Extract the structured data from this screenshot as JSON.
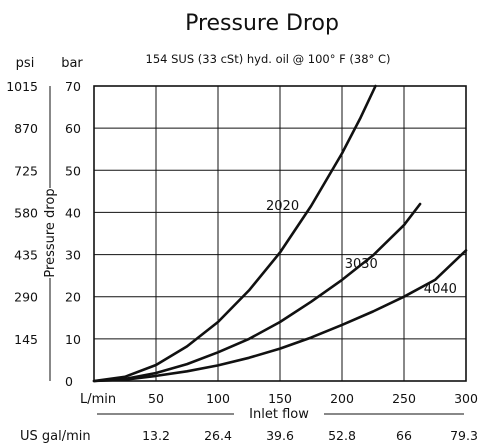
{
  "chart_data": {
    "type": "line",
    "title": "Pressure Drop",
    "subtitle": "154 SUS (33 cSt) hyd. oil @ 100° F (38° C)",
    "y_units": {
      "left": "psi",
      "right": "bar"
    },
    "y_label": "Pressure drop",
    "x_label": "Inlet flow",
    "x_units_primary": "L/min",
    "x_units_secondary": "US gal/min",
    "xlim": [
      0,
      300
    ],
    "ylim": [
      0,
      70
    ],
    "grid": true,
    "x_ticks": [
      50,
      100,
      150,
      200,
      250,
      300
    ],
    "x_tick_labels": [
      "50",
      "100",
      "150",
      "200",
      "250",
      "300"
    ],
    "x_secondary_tick_labels": [
      "13.2",
      "26.4",
      "39.6",
      "52.8",
      "66",
      "79.3"
    ],
    "y_ticks": [
      0,
      10,
      20,
      30,
      40,
      50,
      60,
      70
    ],
    "y_tick_labels_bar": [
      "0",
      "10",
      "20",
      "30",
      "40",
      "50",
      "60",
      "70"
    ],
    "y_tick_labels_psi": [
      "145",
      "290",
      "435",
      "580",
      "725",
      "870",
      "1015"
    ],
    "series": [
      {
        "name": "2020",
        "x": [
          0,
          25,
          50,
          75,
          100,
          125,
          150,
          175,
          200,
          215,
          227
        ],
        "y": [
          0,
          1.0,
          3.8,
          8.2,
          14.0,
          21.5,
          30.5,
          41.5,
          54.0,
          62.5,
          70.0
        ]
      },
      {
        "name": "3030",
        "x": [
          0,
          25,
          50,
          75,
          100,
          125,
          150,
          175,
          200,
          225,
          250,
          263
        ],
        "y": [
          0,
          0.5,
          1.9,
          4.0,
          6.8,
          10.0,
          14.0,
          18.8,
          24.0,
          29.8,
          37.0,
          42.0
        ]
      },
      {
        "name": "4040",
        "x": [
          0,
          25,
          50,
          75,
          100,
          125,
          150,
          175,
          200,
          225,
          250,
          275,
          300
        ],
        "y": [
          0,
          0.3,
          1.2,
          2.3,
          3.7,
          5.5,
          7.7,
          10.3,
          13.3,
          16.5,
          20.0,
          24.0,
          31.0
        ]
      }
    ]
  }
}
